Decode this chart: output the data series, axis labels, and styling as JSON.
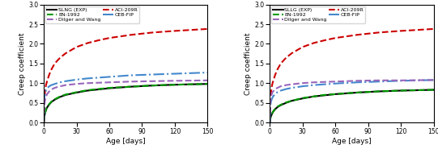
{
  "xlabel": "Age [days]",
  "ylabel": "Creep coefficient",
  "xlim": [
    0,
    150
  ],
  "ylim": [
    0,
    3
  ],
  "yticks": [
    0,
    0.5,
    1.0,
    1.5,
    2.0,
    2.5,
    3.0
  ],
  "xticks": [
    0,
    30,
    60,
    90,
    120,
    150
  ],
  "legend_entries": [
    "SLNG (EXP)",
    "ACI-209R",
    "EN-1992",
    "CEB-FIP",
    "Dilger and Wang"
  ],
  "legend_entries_right": [
    "SLLG (EXP)",
    "ACI-209R",
    "EN-1992",
    "CEB-FIP",
    "Dilger and Wang"
  ],
  "line_styles": [
    "-",
    "--",
    "--",
    "-.",
    "--"
  ],
  "line_colors": [
    "#000000",
    "#cc0000",
    "#009900",
    "#4488cc",
    "#9966bb"
  ],
  "line_widths": [
    1.5,
    1.5,
    1.5,
    1.5,
    1.5
  ],
  "left_curves": {
    "exp": [
      [
        0,
        0.5,
        1,
        2,
        3,
        5,
        7,
        10,
        15,
        20,
        30,
        40,
        50,
        60,
        80,
        100,
        120,
        150
      ],
      [
        0.0,
        0.15,
        0.22,
        0.32,
        0.38,
        0.46,
        0.52,
        0.58,
        0.65,
        0.7,
        0.76,
        0.81,
        0.84,
        0.87,
        0.91,
        0.94,
        0.96,
        0.98
      ]
    ],
    "aci": [
      [
        0,
        0.5,
        1,
        2,
        3,
        5,
        7,
        10,
        15,
        20,
        30,
        40,
        50,
        60,
        80,
        100,
        120,
        150
      ],
      [
        0.0,
        0.55,
        0.75,
        0.95,
        1.05,
        1.22,
        1.35,
        1.5,
        1.65,
        1.76,
        1.92,
        2.02,
        2.09,
        2.15,
        2.23,
        2.29,
        2.33,
        2.38
      ]
    ],
    "en": [
      [
        0,
        0.5,
        1,
        2,
        3,
        5,
        7,
        10,
        15,
        20,
        30,
        40,
        50,
        60,
        80,
        100,
        120,
        150
      ],
      [
        0.0,
        0.15,
        0.22,
        0.33,
        0.39,
        0.47,
        0.53,
        0.59,
        0.66,
        0.71,
        0.77,
        0.82,
        0.85,
        0.88,
        0.91,
        0.94,
        0.96,
        0.98
      ]
    ],
    "ceb": [
      [
        0,
        0.5,
        1,
        2,
        3,
        5,
        7,
        10,
        15,
        20,
        30,
        40,
        50,
        60,
        80,
        100,
        120,
        150
      ],
      [
        0.0,
        0.6,
        0.72,
        0.82,
        0.87,
        0.92,
        0.95,
        0.98,
        1.02,
        1.05,
        1.09,
        1.12,
        1.14,
        1.16,
        1.2,
        1.22,
        1.24,
        1.27
      ]
    ],
    "dilger": [
      [
        0,
        0.5,
        1,
        2,
        3,
        5,
        7,
        10,
        15,
        20,
        30,
        40,
        50,
        60,
        80,
        100,
        120,
        150
      ],
      [
        0.0,
        0.42,
        0.54,
        0.66,
        0.72,
        0.79,
        0.84,
        0.88,
        0.92,
        0.95,
        0.98,
        1.0,
        1.01,
        1.02,
        1.04,
        1.05,
        1.06,
        1.07
      ]
    ]
  },
  "right_curves": {
    "exp": [
      [
        0,
        0.5,
        1,
        2,
        3,
        5,
        7,
        10,
        15,
        20,
        30,
        40,
        50,
        60,
        80,
        100,
        120,
        150
      ],
      [
        0.0,
        0.1,
        0.15,
        0.22,
        0.27,
        0.34,
        0.39,
        0.44,
        0.5,
        0.55,
        0.61,
        0.66,
        0.69,
        0.72,
        0.76,
        0.79,
        0.81,
        0.83
      ]
    ],
    "aci": [
      [
        0,
        0.5,
        1,
        2,
        3,
        5,
        7,
        10,
        15,
        20,
        30,
        40,
        50,
        60,
        80,
        100,
        120,
        150
      ],
      [
        0.0,
        0.55,
        0.75,
        0.95,
        1.05,
        1.22,
        1.35,
        1.5,
        1.65,
        1.76,
        1.92,
        2.02,
        2.09,
        2.15,
        2.23,
        2.29,
        2.33,
        2.38
      ]
    ],
    "en": [
      [
        0,
        0.5,
        1,
        2,
        3,
        5,
        7,
        10,
        15,
        20,
        30,
        40,
        50,
        60,
        80,
        100,
        120,
        150
      ],
      [
        0.0,
        0.1,
        0.15,
        0.23,
        0.28,
        0.35,
        0.4,
        0.45,
        0.51,
        0.55,
        0.62,
        0.66,
        0.7,
        0.72,
        0.76,
        0.79,
        0.81,
        0.83
      ]
    ],
    "ceb": [
      [
        0,
        0.5,
        1,
        2,
        3,
        5,
        7,
        10,
        15,
        20,
        30,
        40,
        50,
        60,
        80,
        100,
        120,
        150
      ],
      [
        0.0,
        0.4,
        0.52,
        0.61,
        0.66,
        0.73,
        0.77,
        0.81,
        0.85,
        0.88,
        0.92,
        0.95,
        0.97,
        0.99,
        1.02,
        1.04,
        1.06,
        1.08
      ]
    ],
    "dilger": [
      [
        0,
        0.5,
        1,
        2,
        3,
        5,
        7,
        10,
        15,
        20,
        30,
        40,
        50,
        60,
        80,
        100,
        120,
        150
      ],
      [
        0.0,
        0.52,
        0.64,
        0.74,
        0.79,
        0.85,
        0.88,
        0.92,
        0.95,
        0.97,
        1.0,
        1.02,
        1.03,
        1.04,
        1.06,
        1.07,
        1.07,
        1.08
      ]
    ]
  }
}
